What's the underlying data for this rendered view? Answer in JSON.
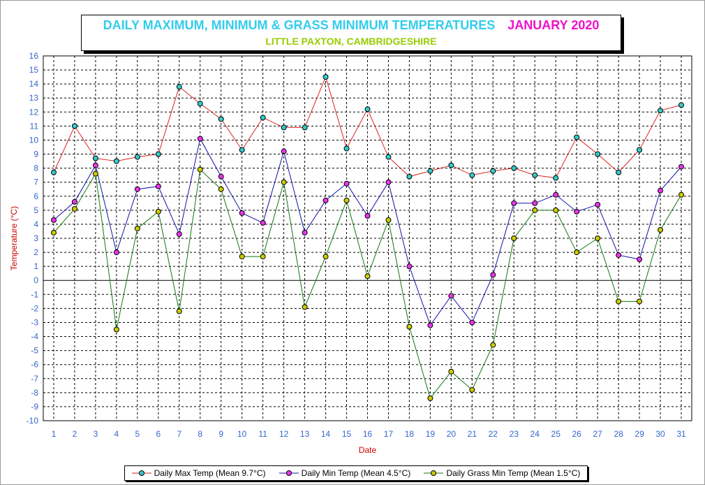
{
  "title": {
    "main": "DAILY MAXIMUM, MINIMUM & GRASS MINIMUM TEMPERATURES",
    "period": "JANUARY 2020",
    "subtitle": "LITTLE PAXTON, CAMBRIDGESHIRE"
  },
  "colors": {
    "title_main": "#33ccee",
    "title_period": "#ee11cc",
    "subtitle": "#99cc00",
    "axis_labels": "#3366cc",
    "ylabel": "#cc0000",
    "xlabel": "#cc0000"
  },
  "chart_data": {
    "type": "line",
    "xlabel": "Date",
    "ylabel": "Temperature (°C)",
    "x": [
      1,
      2,
      3,
      4,
      5,
      6,
      7,
      8,
      9,
      10,
      11,
      12,
      13,
      14,
      15,
      16,
      17,
      18,
      19,
      20,
      21,
      22,
      23,
      24,
      25,
      26,
      27,
      28,
      29,
      30,
      31
    ],
    "xlim": [
      0.5,
      31.5
    ],
    "ylim": [
      -10,
      16
    ],
    "yticks": [
      -10,
      -9,
      -8,
      -7,
      -6,
      -5,
      -4,
      -3,
      -2,
      -1,
      0,
      1,
      2,
      3,
      4,
      5,
      6,
      7,
      8,
      9,
      10,
      11,
      12,
      13,
      14,
      15,
      16
    ],
    "grid": true,
    "legend_position": "bottom",
    "series": [
      {
        "name": "Daily Max Temp (Mean 9.7°C)",
        "line_color": "#dd2222",
        "marker_color": "#33cccc",
        "values": [
          7.7,
          11.0,
          8.7,
          8.5,
          8.8,
          9.0,
          13.8,
          12.6,
          11.5,
          9.3,
          11.6,
          10.9,
          10.9,
          14.5,
          9.4,
          12.2,
          8.8,
          7.4,
          7.8,
          8.2,
          7.5,
          7.8,
          8.0,
          7.5,
          7.3,
          10.2,
          9.0,
          7.7,
          9.3,
          12.1,
          12.5
        ]
      },
      {
        "name": "Daily Min Temp (Mean 4.5°C)",
        "line_color": "#1111aa",
        "marker_color": "#ee33ee",
        "values": [
          4.3,
          5.6,
          8.2,
          2.0,
          6.5,
          6.7,
          3.3,
          10.1,
          7.4,
          4.8,
          4.1,
          9.2,
          3.4,
          5.7,
          6.9,
          4.6,
          7.0,
          1.0,
          -3.2,
          -1.1,
          -3.0,
          0.4,
          5.5,
          5.5,
          6.1,
          4.9,
          5.4,
          1.8,
          1.5,
          6.4,
          8.1
        ]
      },
      {
        "name": "Daily Grass Min Temp (Mean 1.5°C)",
        "line_color": "#117711",
        "marker_color": "#cccc00",
        "values": [
          3.4,
          5.1,
          7.6,
          -3.5,
          3.7,
          4.9,
          -2.2,
          7.9,
          6.5,
          1.7,
          1.7,
          7.0,
          -1.9,
          1.7,
          5.7,
          0.3,
          4.3,
          -3.3,
          -8.4,
          -6.5,
          -7.8,
          -4.6,
          3.0,
          5.0,
          5.0,
          2.0,
          3.0,
          -1.5,
          -1.5,
          3.6,
          6.1
        ]
      }
    ]
  }
}
